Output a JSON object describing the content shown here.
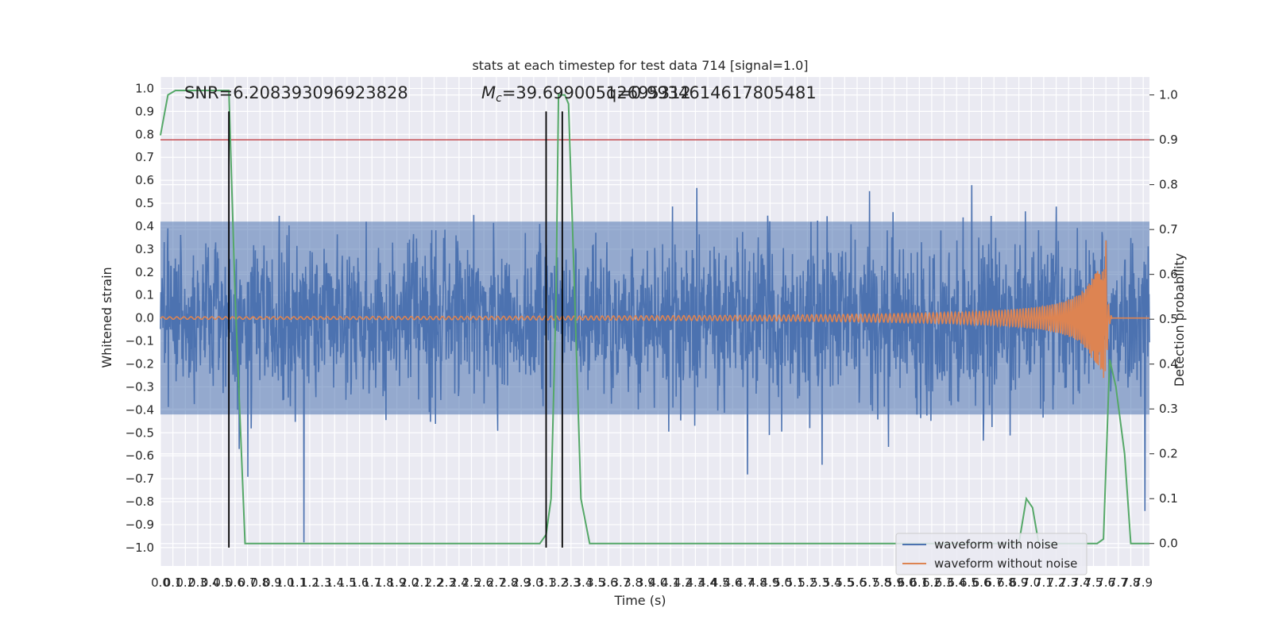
{
  "chart_data": {
    "type": "line",
    "title": "stats at each timestep for test data 714 [signal=1.0]",
    "xlabel": "Time (s)",
    "ylabel": "Whitened strain",
    "y2label": "Detection probability",
    "xlim": [
      0.0,
      7.95
    ],
    "ylim": [
      -1.08,
      1.05
    ],
    "y2lim": [
      -0.05,
      1.04
    ],
    "xticks": [
      "0.0",
      "0.1",
      "0.2",
      "0.3",
      "0.4",
      "0.5",
      "0.6",
      "0.7",
      "0.8",
      "0.9",
      "1.0",
      "1.1",
      "1.2",
      "1.3",
      "1.4",
      "1.5",
      "1.6",
      "1.7",
      "1.8",
      "1.9",
      "2.0",
      "2.1",
      "2.2",
      "2.3",
      "2.4",
      "2.5",
      "2.6",
      "2.7",
      "2.8",
      "2.9",
      "3.0",
      "3.1",
      "3.2",
      "3.3",
      "3.4",
      "3.5",
      "3.6",
      "3.7",
      "3.8",
      "3.9",
      "4.0",
      "4.1",
      "4.2",
      "4.3",
      "4.4",
      "4.5",
      "4.6",
      "4.7",
      "4.8",
      "4.9",
      "5.0",
      "5.1",
      "5.2",
      "5.3",
      "5.4",
      "5.5",
      "5.6",
      "5.7",
      "5.8",
      "5.9",
      "6.0",
      "6.1",
      "6.2",
      "6.3",
      "6.4",
      "6.5",
      "6.6",
      "6.7",
      "6.8",
      "6.9",
      "7.0",
      "7.1",
      "7.2",
      "7.3",
      "7.4",
      "7.5",
      "7.6",
      "7.7",
      "7.8",
      "7.9"
    ],
    "yticks": [
      "1.0",
      "0.9",
      "0.8",
      "0.7",
      "0.6",
      "0.5",
      "0.4",
      "0.3",
      "0.2",
      "0.1",
      "0.0",
      "−0.1",
      "−0.2",
      "−0.3",
      "−0.4",
      "−0.5",
      "−0.6",
      "−0.7",
      "−0.8",
      "−0.9",
      "−1.0"
    ],
    "y2ticks": [
      "1.0",
      "0.9",
      "0.8",
      "0.7",
      "0.6",
      "0.5",
      "0.4",
      "0.3",
      "0.2",
      "0.1",
      "0.0"
    ],
    "annotations": {
      "snr": "SNR=6.208393096923828",
      "mc": "=39.69900512695312",
      "mc_symbol": "M",
      "mc_sub": "c",
      "q": "q=0.9934614617805481"
    },
    "series": [
      {
        "name": "waveform with noise",
        "color": "#4c72b0",
        "description": "dense whitened strain noise, typical amplitude about ±0.4, spikes to about ±0.9",
        "envelope_min": -0.42,
        "envelope_max": 0.42
      },
      {
        "name": "waveform without noise",
        "color": "#dd8452",
        "description": "chirp signal, near zero until about 4.3 s, growing oscillation peaking at about 7.6 s",
        "merger_time": 7.6,
        "peak_amplitude": 0.34
      },
      {
        "axis": "right",
        "color": "#55a868",
        "x": [
          0.0,
          0.06,
          0.12,
          0.2,
          0.3,
          0.4,
          0.5,
          0.55,
          0.6,
          0.68,
          1.0,
          2.0,
          3.0,
          3.05,
          3.1,
          3.14,
          3.18,
          3.2,
          3.25,
          3.28,
          3.33,
          3.38,
          3.45,
          3.5,
          4.0,
          5.0,
          6.0,
          6.8,
          6.9,
          6.96,
          7.01,
          7.06,
          7.1,
          7.5,
          7.53,
          7.58,
          7.63,
          7.68,
          7.75,
          7.8,
          7.9,
          7.95
        ],
        "y": [
          0.91,
          1.0,
          1.01,
          1.01,
          1.01,
          1.01,
          1.01,
          1.01,
          0.55,
          0.0,
          0.0,
          0.0,
          0.0,
          0.0,
          0.02,
          0.1,
          0.55,
          1.0,
          1.0,
          0.98,
          0.55,
          0.1,
          0.0,
          0.0,
          0.0,
          0.0,
          0.0,
          0.0,
          0.0,
          0.1,
          0.08,
          0.0,
          0.0,
          0.0,
          0.0,
          0.01,
          0.41,
          0.35,
          0.2,
          0.0,
          0.0,
          0.0
        ]
      }
    ],
    "threshold": {
      "axis": "right",
      "value": 0.9,
      "color": "#c44e52"
    },
    "vertical_lines": [
      0.55,
      3.1,
      3.23
    ],
    "legend": {
      "placement": "lower-right",
      "entries": [
        "waveform with noise",
        "waveform without noise"
      ]
    },
    "grid": true,
    "background_color": "#eaeaf2"
  }
}
